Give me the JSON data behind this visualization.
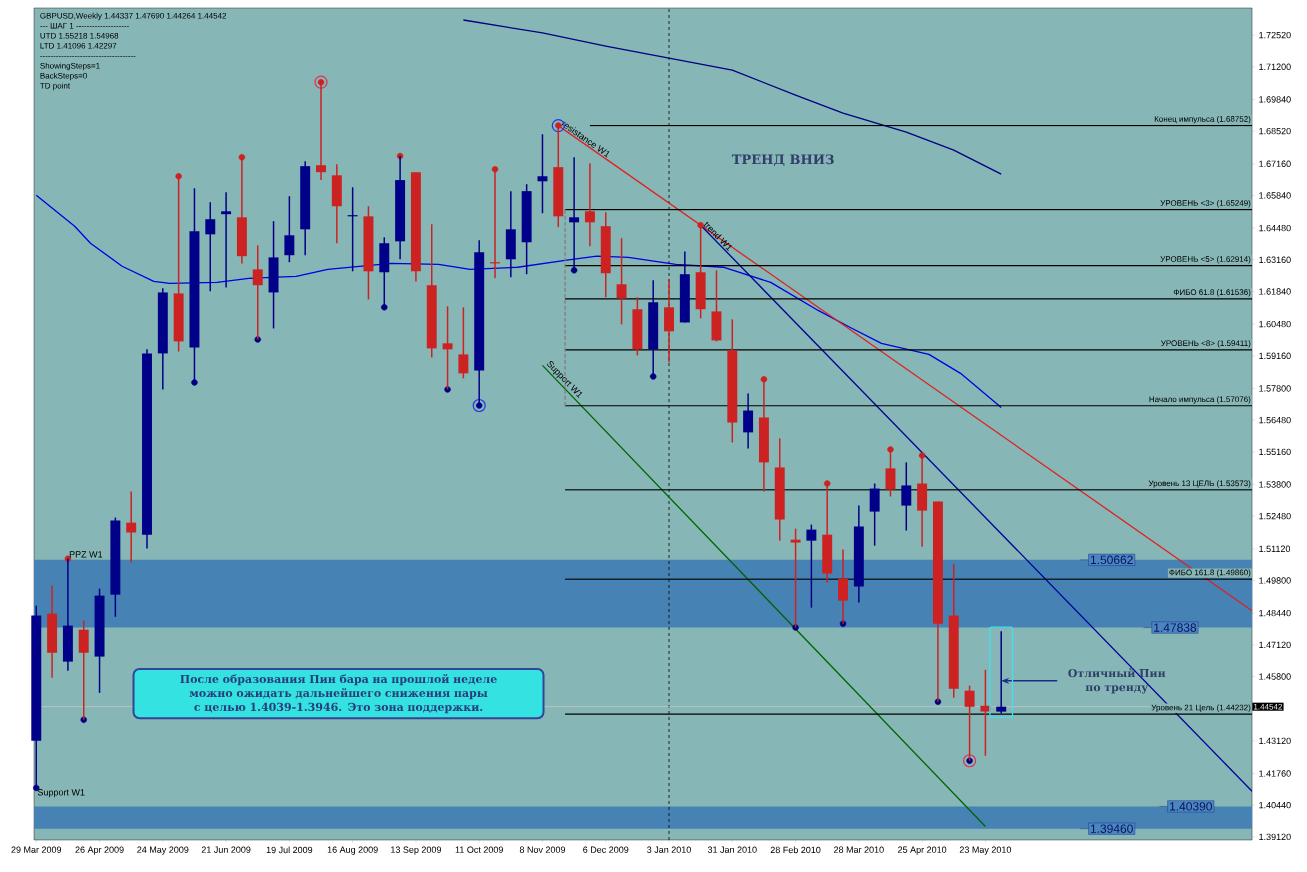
{
  "chart_data": {
    "type": "candlestick",
    "title": "GBPUSD,Weekly  1.44337 1.47690 1.44264 1.44542",
    "x": [
      "2009-03-29",
      "2009-04-05",
      "2009-04-12",
      "2009-04-19",
      "2009-04-26",
      "2009-05-03",
      "2009-05-10",
      "2009-05-17",
      "2009-05-24",
      "2009-05-31",
      "2009-06-07",
      "2009-06-14",
      "2009-06-21",
      "2009-06-28",
      "2009-07-05",
      "2009-07-12",
      "2009-07-19",
      "2009-07-26",
      "2009-08-02",
      "2009-08-09",
      "2009-08-16",
      "2009-08-23",
      "2009-08-30",
      "2009-09-06",
      "2009-09-13",
      "2009-09-20",
      "2009-09-27",
      "2009-10-04",
      "2009-10-11",
      "2009-10-18",
      "2009-10-25",
      "2009-11-01",
      "2009-11-08",
      "2009-11-15",
      "2009-11-22",
      "2009-11-29",
      "2009-12-06",
      "2009-12-13",
      "2009-12-20",
      "2009-12-27",
      "2010-01-03",
      "2010-01-10",
      "2010-01-17",
      "2010-01-24",
      "2010-01-31",
      "2010-02-07",
      "2010-02-14",
      "2010-02-21",
      "2010-02-28",
      "2010-03-07",
      "2010-03-14",
      "2010-03-21",
      "2010-03-28",
      "2010-04-04",
      "2010-04-11",
      "2010-04-18",
      "2010-04-25",
      "2010-05-02",
      "2010-05-09",
      "2010-05-16",
      "2010-05-23",
      "2010-05-30"
    ],
    "ohlc": [
      [
        1.4312,
        1.4875,
        1.4116,
        1.4834
      ],
      [
        1.4842,
        1.4959,
        1.4575,
        1.4679
      ],
      [
        1.4642,
        1.5071,
        1.4604,
        1.4792
      ],
      [
        1.4775,
        1.4813,
        1.44,
        1.4679
      ],
      [
        1.4663,
        1.4946,
        1.4512,
        1.4917
      ],
      [
        1.4921,
        1.5242,
        1.4829,
        1.523
      ],
      [
        1.5221,
        1.5351,
        1.5055,
        1.518
      ],
      [
        1.5171,
        1.5943,
        1.5113,
        1.5926
      ],
      [
        1.5926,
        1.6197,
        1.5776,
        1.618
      ],
      [
        1.6176,
        1.6664,
        1.5934,
        1.5976
      ],
      [
        1.5951,
        1.6614,
        1.5805,
        1.6435
      ],
      [
        1.6422,
        1.6556,
        1.6185,
        1.6485
      ],
      [
        1.6506,
        1.6597,
        1.6201,
        1.6518
      ],
      [
        1.6493,
        1.6743,
        1.6301,
        1.6331
      ],
      [
        1.6276,
        1.6376,
        1.5984,
        1.621
      ],
      [
        1.618,
        1.6477,
        1.603,
        1.6326
      ],
      [
        1.6335,
        1.6581,
        1.6306,
        1.6418
      ],
      [
        1.6443,
        1.6727,
        1.6335,
        1.6706
      ],
      [
        1.671,
        1.7056,
        1.6648,
        1.6681
      ],
      [
        1.6668,
        1.6714,
        1.6385,
        1.6539
      ],
      [
        1.6497,
        1.6618,
        1.6268,
        1.6502
      ],
      [
        1.6497,
        1.6539,
        1.6151,
        1.6268
      ],
      [
        1.6264,
        1.641,
        1.6118,
        1.6385
      ],
      [
        1.6393,
        1.6748,
        1.6318,
        1.6648
      ],
      [
        1.6681,
        1.6681,
        1.6226,
        1.6268
      ],
      [
        1.621,
        1.6464,
        1.5909,
        1.5947
      ],
      [
        1.5968,
        1.6122,
        1.5776,
        1.5943
      ],
      [
        1.5922,
        1.6118,
        1.5822,
        1.5843
      ],
      [
        1.5855,
        1.6397,
        1.5709,
        1.6347
      ],
      [
        1.6306,
        1.6693,
        1.6239,
        1.6301
      ],
      [
        1.6318,
        1.6602,
        1.6243,
        1.6443
      ],
      [
        1.6389,
        1.6631,
        1.6256,
        1.6602
      ],
      [
        1.6643,
        1.6839,
        1.651,
        1.6664
      ],
      [
        1.6702,
        1.6875,
        1.6452,
        1.6497
      ],
      [
        1.6472,
        1.6743,
        1.6272,
        1.6493
      ],
      [
        1.6518,
        1.6718,
        1.6372,
        1.6472
      ],
      [
        1.6456,
        1.6514,
        1.616,
        1.626
      ],
      [
        1.6214,
        1.6406,
        1.6047,
        1.6155
      ],
      [
        1.611,
        1.616,
        1.5918,
        1.5943
      ],
      [
        1.5943,
        1.6231,
        1.583,
        1.6139
      ],
      [
        1.6118,
        1.6235,
        1.5889,
        1.6018
      ],
      [
        1.6055,
        1.6351,
        1.6055,
        1.6256
      ],
      [
        1.6264,
        1.646,
        1.6072,
        1.611
      ],
      [
        1.6101,
        1.6272,
        1.5976,
        1.598
      ],
      [
        1.5939,
        1.6068,
        1.5555,
        1.5638
      ],
      [
        1.5597,
        1.5759,
        1.553,
        1.5688
      ],
      [
        1.5659,
        1.5818,
        1.5351,
        1.5472
      ],
      [
        1.5451,
        1.5572,
        1.5146,
        1.5234
      ],
      [
        1.515,
        1.5196,
        1.4784,
        1.5138
      ],
      [
        1.5146,
        1.5213,
        1.4867,
        1.5192
      ],
      [
        1.5171,
        1.5384,
        1.4971,
        1.5009
      ],
      [
        1.4988,
        1.5109,
        1.48,
        1.4896
      ],
      [
        1.4955,
        1.5292,
        1.4888,
        1.5205
      ],
      [
        1.5267,
        1.5384,
        1.5125,
        1.5363
      ],
      [
        1.5447,
        1.5526,
        1.533,
        1.5359
      ],
      [
        1.5292,
        1.5472,
        1.5188,
        1.5376
      ],
      [
        1.5384,
        1.5501,
        1.5121,
        1.5271
      ],
      [
        1.5309,
        1.5309,
        1.4475,
        1.48
      ],
      [
        1.4834,
        1.505,
        1.4492,
        1.4529
      ],
      [
        1.4521,
        1.4542,
        1.4229,
        1.4454
      ],
      [
        1.4458,
        1.4608,
        1.425,
        1.4434
      ],
      [
        1.44337,
        1.4769,
        1.44264,
        1.44542
      ]
    ],
    "colors": [
      "#000088",
      "#cc2222",
      "#000088",
      "#cc2222",
      "#000088",
      "#000088",
      "#cc2222",
      "#000088",
      "#000088",
      "#cc2222",
      "#000088",
      "#000088",
      "#000088",
      "#cc2222",
      "#cc2222",
      "#000088",
      "#000088",
      "#000088",
      "#cc2222",
      "#cc2222",
      "#000088",
      "#cc2222",
      "#000088",
      "#000088",
      "#cc2222",
      "#cc2222",
      "#cc2222",
      "#cc2222",
      "#000088",
      "#cc2222",
      "#000088",
      "#000088",
      "#000088",
      "#cc2222",
      "#000088",
      "#cc2222",
      "#cc2222",
      "#cc2222",
      "#cc2222",
      "#000088",
      "#cc2222",
      "#000088",
      "#cc2222",
      "#cc2222",
      "#cc2222",
      "#000088",
      "#cc2222",
      "#cc2222",
      "#cc2222",
      "#000088",
      "#cc2222",
      "#cc2222",
      "#000088",
      "#000088",
      "#cc2222",
      "#000088",
      "#cc2222",
      "#cc2222",
      "#cc2222",
      "#cc2222",
      "#cc2222",
      "#000088"
    ],
    "series": [
      {
        "type": "line",
        "color": "#0000e0",
        "x": [
          "2009-03-29",
          "2009-04-15",
          "2009-04-22",
          "2009-05-06",
          "2009-05-20",
          "2009-05-27",
          "2009-06-17",
          "2009-07-01",
          "2009-07-22",
          "2009-08-05",
          "2009-08-19",
          "2009-09-02",
          "2009-09-23",
          "2009-10-07",
          "2009-10-28",
          "2009-11-18",
          "2009-12-02",
          "2009-12-16",
          "2010-01-06",
          "2010-01-27",
          "2010-02-17",
          "2010-03-10",
          "2010-03-24",
          "2010-04-07",
          "2010-04-28",
          "2010-05-12",
          "2010-05-30"
        ],
        "values": [
          1.6585,
          1.6456,
          1.6385,
          1.6289,
          1.6226,
          1.6218,
          1.6222,
          1.6239,
          1.6247,
          1.6276,
          1.6289,
          1.6301,
          1.6297,
          1.6276,
          1.6285,
          1.6314,
          1.6331,
          1.6326,
          1.6297,
          1.6285,
          1.6222,
          1.6105,
          1.6035,
          1.5968,
          1.5922,
          1.5843,
          1.5701
        ]
      },
      {
        "type": "line",
        "color": "#000080",
        "x": [
          "2009-10-04",
          "2009-11-08",
          "2009-12-06",
          "2010-01-03",
          "2010-01-31",
          "2010-02-28",
          "2010-03-21",
          "2010-04-18",
          "2010-05-09",
          "2010-05-30"
        ],
        "values": [
          1.7315,
          1.7261,
          1.7206,
          1.7156,
          1.7106,
          1.7002,
          1.6927,
          1.6848,
          1.6773,
          1.6673
        ]
      },
      {
        "type": "line",
        "name": "resistance W1",
        "color": "#dd2222",
        "x": [
          "2009-11-15",
          "2010-09-18"
        ],
        "values": [
          1.6875,
          1.4854
        ]
      },
      {
        "type": "line",
        "name": "trend W1",
        "color": "#000099",
        "x": [
          "2010-01-17",
          "2010-09-18"
        ],
        "values": [
          1.646,
          1.4102
        ]
      },
      {
        "type": "line",
        "name": "Support W1",
        "color": "#006400",
        "x": [
          "2009-11-08",
          "2010-05-23"
        ],
        "values": [
          1.5876,
          1.3955
        ]
      },
      {
        "type": "line",
        "name": "Конец импульса    (1.68752)",
        "color": "#000000",
        "x": [
          "2009-11-29",
          "2010-09-18"
        ],
        "values": [
          1.68752,
          1.68752
        ]
      },
      {
        "type": "line",
        "name": "УРОВЕНЬ <3>    (1.65249)",
        "color": "#000000",
        "x": [
          "2009-11-18",
          "2010-09-18"
        ],
        "values": [
          1.65249,
          1.65249
        ]
      },
      {
        "type": "line",
        "name": "УРОВЕНЬ <5>    (1.62914)",
        "color": "#000000",
        "x": [
          "2009-11-18",
          "2010-09-18"
        ],
        "values": [
          1.62914,
          1.62914
        ]
      },
      {
        "type": "line",
        "name": "ФИБО 61.8    (1.61536)",
        "color": "#000000",
        "x": [
          "2009-11-18",
          "2010-09-18"
        ],
        "values": [
          1.61536,
          1.61536
        ]
      },
      {
        "type": "line",
        "name": "УРОВЕНЬ <8>    (1.59411)",
        "color": "#000000",
        "x": [
          "2009-11-18",
          "2010-09-18"
        ],
        "values": [
          1.59411,
          1.59411
        ]
      },
      {
        "type": "line",
        "name": "Начало импульса    (1.57076)",
        "color": "#000000",
        "x": [
          "2009-11-18",
          "2010-09-18"
        ],
        "values": [
          1.57076,
          1.57076
        ]
      },
      {
        "type": "line",
        "name": "Уровень 13 ЦЕЛЬ    (1.53573)",
        "color": "#000000",
        "x": [
          "2009-11-18",
          "2010-09-18"
        ],
        "values": [
          1.53573,
          1.53573
        ]
      },
      {
        "type": "line",
        "name": "ФИБО 161.8    (1.49860)",
        "color": "#000000",
        "x": [
          "2009-11-18",
          "2010-09-18"
        ],
        "values": [
          1.4986,
          1.4986
        ]
      },
      {
        "type": "line",
        "name": "Уровень 21 Цель (1.44232)",
        "color": "#000000",
        "x": [
          "2009-11-18",
          "2010-09-18"
        ],
        "values": [
          1.44232,
          1.44232
        ]
      },
      {
        "type": "line",
        "color": "#808080",
        "line_style": "dashed",
        "x": [
          "2009-11-18",
          "2009-11-18"
        ],
        "values": [
          1.6525,
          1.5708
        ]
      },
      {
        "type": "scatter",
        "marker": "circle",
        "color": "#cc2222",
        "x": [
          "2009-04-12",
          "2009-05-31",
          "2009-06-28",
          "2009-08-02",
          "2009-09-06",
          "2009-10-18",
          "2009-11-15",
          "2010-01-17",
          "2010-02-14",
          "2010-03-14",
          "2010-04-11",
          "2010-04-25"
        ],
        "values": [
          1.5071,
          1.6664,
          1.6743,
          1.7056,
          1.6748,
          1.6693,
          1.6875,
          1.646,
          1.5818,
          1.5384,
          1.5526,
          1.5501
        ]
      },
      {
        "type": "scatter",
        "marker": "circle",
        "color": "#000080",
        "x": [
          "2009-03-29",
          "2009-04-19",
          "2009-06-07",
          "2009-07-05",
          "2009-08-30",
          "2009-09-27",
          "2009-10-11",
          "2009-11-22",
          "2009-12-27",
          "2010-02-28",
          "2010-03-21",
          "2010-05-02",
          "2010-05-16"
        ],
        "values": [
          1.4116,
          1.44,
          1.5805,
          1.5984,
          1.6118,
          1.5776,
          1.5709,
          1.6272,
          1.583,
          1.4784,
          1.48,
          1.4475,
          1.4229
        ]
      },
      {
        "type": "scatter",
        "marker": "circle",
        "colors": [
          "#dd3355",
          "#2233ee",
          "#2233ee",
          "#dd3355"
        ],
        "x": [
          "2009-08-02",
          "2009-10-11",
          "2009-11-15",
          "2010-05-16"
        ],
        "values": [
          1.7056,
          1.5709,
          1.6875,
          1.4229
        ]
      }
    ],
    "bands": [
      {
        "axis": "y",
        "from": 1.47838,
        "to": 1.50662,
        "color": "#4682b4"
      },
      {
        "axis": "y",
        "from": 1.3946,
        "to": 1.4039,
        "color": "#4682b4"
      }
    ],
    "ref_lines": [
      {
        "axis": "x",
        "value": "2010-01-03",
        "line_style": "dashed",
        "color": "#000000"
      },
      {
        "axis": "y",
        "value": 1.44542,
        "label": "1.44542",
        "color": "#c8c8c8"
      }
    ],
    "annotations": [
      "---    ШАГ 1    --------------------",
      "UTD 1.55218  1.54968",
      "LTD  1.41096  1.42297",
      "------------------------------------",
      "ShowingSteps=1",
      "BackSteps=0",
      "TD point",
      "ТРЕНД ВНИЗ",
      "После образования Пин бара на прошлой неделе можно ожидать дальнейшего снижения пары с целью 1.4039-1.3946. Это зона поддержки.",
      {
        "text": "Отличный Пин по тренду",
        "x": "2010-05-30",
        "y": 1.4562
      },
      {
        "text": "PPZ W1",
        "x": "2009-04-12",
        "y": 1.5071
      },
      {
        "text": "Support W1",
        "x": "2009-03-29",
        "y": 1.4116
      },
      {
        "text": "1.50662",
        "x": "2010-07-04",
        "y": 1.50662
      },
      {
        "text": "1.47838",
        "x": "2010-08-01",
        "y": 1.47838
      },
      {
        "text": "1.40390",
        "x": "2010-08-08",
        "y": 1.4039
      },
      {
        "text": "1.39460",
        "x": "2010-07-04",
        "y": 1.3946
      }
    ],
    "xlim": [
      "2009-03-28",
      "2010-09-18"
    ],
    "ylim": [
      1.3899,
      1.7365
    ],
    "xticks": [
      {
        "value": "2009-03-29",
        "label": "29 Mar 2009"
      },
      {
        "value": "2009-04-26",
        "label": "26 Apr 2009"
      },
      {
        "value": "2009-05-24",
        "label": "24 May 2009"
      },
      {
        "value": "2009-06-21",
        "label": "21 Jun 2009"
      },
      {
        "value": "2009-07-19",
        "label": "19 Jul 2009"
      },
      {
        "value": "2009-08-16",
        "label": "16 Aug 2009"
      },
      {
        "value": "2009-09-13",
        "label": "13 Sep 2009"
      },
      {
        "value": "2009-10-11",
        "label": "11 Oct 2009"
      },
      {
        "value": "2009-11-08",
        "label": "8 Nov 2009"
      },
      {
        "value": "2009-12-06",
        "label": "6 Dec 2009"
      },
      {
        "value": "2010-01-03",
        "label": "3 Jan 2010"
      },
      {
        "value": "2010-01-31",
        "label": "31 Jan 2010"
      },
      {
        "value": "2010-02-28",
        "label": "28 Feb 2010"
      },
      {
        "value": "2010-03-28",
        "label": "28 Mar 2010"
      },
      {
        "value": "2010-04-25",
        "label": "25 Apr 2010"
      },
      {
        "value": "2010-05-23",
        "label": "23 May 2010"
      }
    ],
    "yticks": [
      {
        "value": 1.3912,
        "label": "1.39120"
      },
      {
        "value": 1.4044,
        "label": "1.40440"
      },
      {
        "value": 1.4176,
        "label": "1.41760"
      },
      {
        "value": 1.4312,
        "label": "1.43120"
      },
      {
        "value": 1.458,
        "label": "1.45800"
      },
      {
        "value": 1.4712,
        "label": "1.47120"
      },
      {
        "value": 1.4844,
        "label": "1.48440"
      },
      {
        "value": 1.498,
        "label": "1.49800"
      },
      {
        "value": 1.5112,
        "label": "1.51120"
      },
      {
        "value": 1.5248,
        "label": "1.52480"
      },
      {
        "value": 1.538,
        "label": "1.53800"
      },
      {
        "value": 1.5516,
        "label": "1.55160"
      },
      {
        "value": 1.5648,
        "label": "1.56480"
      },
      {
        "value": 1.578,
        "label": "1.57800"
      },
      {
        "value": 1.5916,
        "label": "1.59160"
      },
      {
        "value": 1.6048,
        "label": "1.60480"
      },
      {
        "value": 1.6184,
        "label": "1.61840"
      },
      {
        "value": 1.6316,
        "label": "1.63160"
      },
      {
        "value": 1.6448,
        "label": "1.64480"
      },
      {
        "value": 1.6584,
        "label": "1.65840"
      },
      {
        "value": 1.6716,
        "label": "1.67160"
      },
      {
        "value": 1.6852,
        "label": "1.68520"
      },
      {
        "value": 1.6984,
        "label": "1.69840"
      },
      {
        "value": 1.712,
        "label": "1.71200"
      },
      {
        "value": 1.7252,
        "label": "1.72520"
      }
    ]
  }
}
